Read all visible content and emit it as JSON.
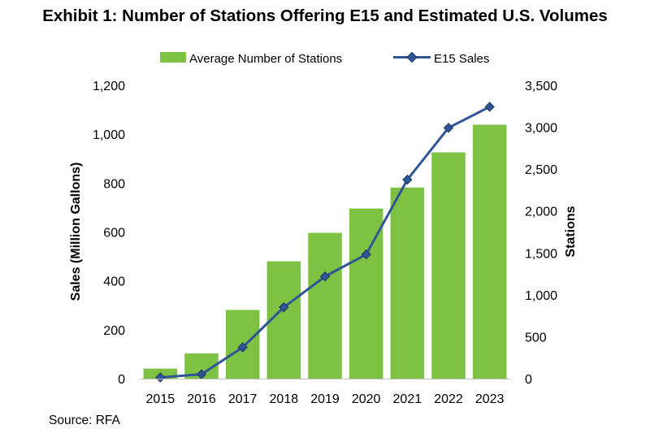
{
  "title": "Exhibit 1: Number of Stations Offering E15 and Estimated U.S. Volumes",
  "source": "Source: RFA",
  "colors": {
    "bars": "#7dc242",
    "line": "#2f5597",
    "marker": "#2f5597"
  },
  "chart_data": {
    "type": "bar",
    "categories": [
      "2015",
      "2016",
      "2017",
      "2018",
      "2019",
      "2020",
      "2021",
      "2022",
      "2023"
    ],
    "series": [
      {
        "name": "Average Number of Stations",
        "type": "bar",
        "axis": "right",
        "values": [
          120,
          300,
          820,
          1400,
          1740,
          2030,
          2280,
          2700,
          3030
        ]
      },
      {
        "name": "E15 Sales",
        "type": "line",
        "axis": "left",
        "marker": "diamond",
        "values": [
          5,
          18,
          128,
          292,
          418,
          508,
          814,
          1026,
          1112
        ]
      }
    ],
    "ylabel": "Sales (Million Gallons)",
    "ylabel_right": "Stations",
    "ylim": [
      0,
      1200
    ],
    "ylim_right": [
      0,
      3500
    ],
    "yticks": [
      "0",
      "200",
      "400",
      "600",
      "800",
      "1,000",
      "1,200"
    ],
    "yticks_right": [
      "0",
      "500",
      "1,000",
      "1,500",
      "2,000",
      "2,500",
      "3,000",
      "3,500"
    ],
    "legend": "top-center",
    "grid": false
  }
}
